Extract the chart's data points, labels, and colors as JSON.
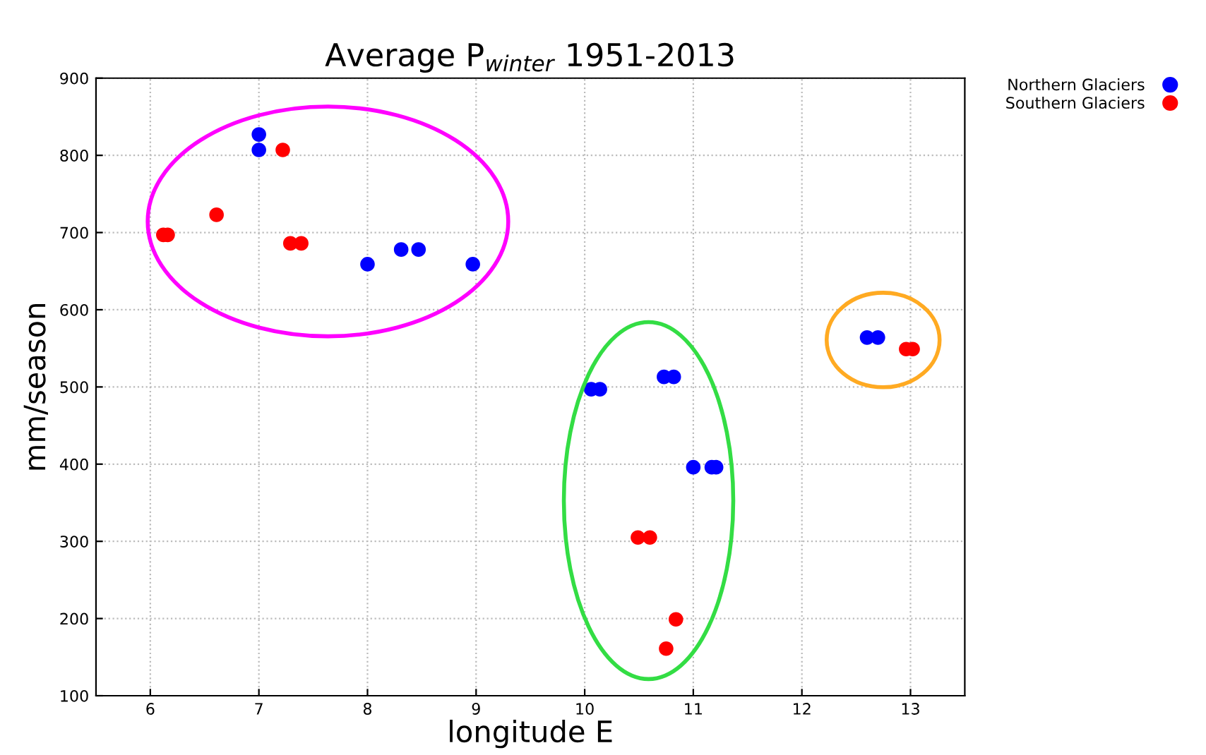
{
  "chart_data": {
    "type": "scatter",
    "title": "Average P$_{winter}$ 1951-2013",
    "xlabel": "longitude E",
    "ylabel": "mm/season",
    "xlim": [
      5.5,
      13.5
    ],
    "xticks": [
      6,
      7,
      8,
      9,
      10,
      11,
      12,
      13
    ],
    "ylim": [
      100,
      900
    ],
    "yticks": [
      100,
      200,
      300,
      400,
      500,
      600,
      700,
      800,
      900
    ],
    "grid": true,
    "legend": "top right",
    "marker": "circle",
    "series": [
      {
        "name": "Northern Glaciers",
        "color": "#0000ff",
        "x": [
          7.0,
          7.0,
          8.0,
          8.31,
          8.47,
          8.97,
          10.06,
          10.14,
          10.73,
          10.82,
          11.0,
          11.17,
          11.21,
          12.6,
          12.7
        ],
        "values": [
          827,
          807,
          659,
          678,
          678,
          659,
          497,
          497,
          513,
          513,
          396,
          396,
          396,
          564,
          564
        ]
      },
      {
        "name": "Southern Glaciers",
        "color": "#ff0000",
        "x": [
          6.12,
          6.16,
          6.61,
          7.22,
          7.29,
          7.39,
          10.49,
          10.6,
          10.84,
          10.75,
          12.96,
          13.02
        ],
        "values": [
          697,
          697,
          723,
          807,
          686,
          686,
          305,
          305,
          199,
          161,
          549,
          549
        ]
      }
    ]
  }
}
